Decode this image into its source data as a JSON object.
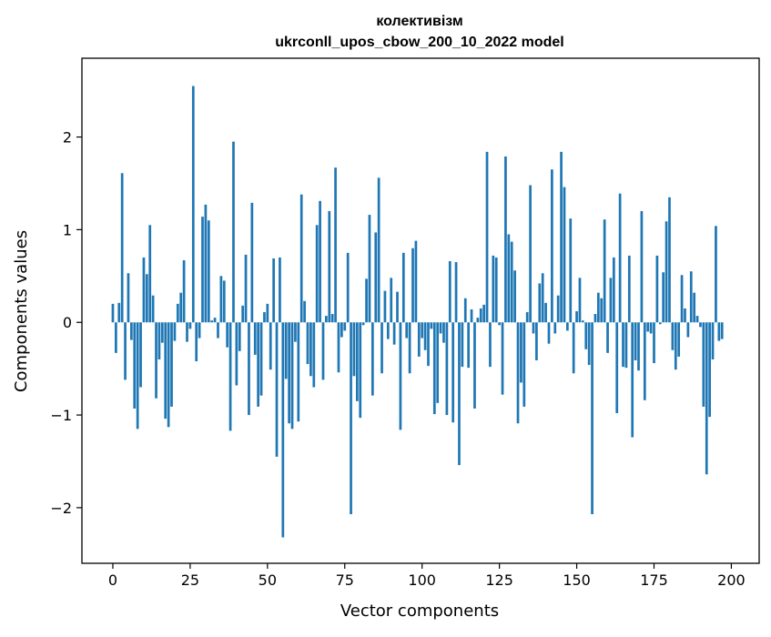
{
  "chart_data": {
    "type": "bar",
    "title": "колективізм",
    "subtitle": "ukrconll_upos_cbow_200_10_2022 model",
    "xlabel": "Vector components",
    "ylabel": "Components values",
    "xlim": [
      -10,
      209
    ],
    "ylim": [
      -2.6,
      2.85
    ],
    "xticks": [
      0,
      25,
      50,
      75,
      100,
      125,
      150,
      175,
      200
    ],
    "yticks": [
      -2,
      -1,
      0,
      1,
      2
    ],
    "ytick_labels": [
      "−2",
      "−1",
      "0",
      "1",
      "2"
    ],
    "grid": false,
    "legend": "none",
    "bar_color": "#1f77b4",
    "series": [
      {
        "values": [
          0.2,
          -0.33,
          0.21,
          1.61,
          -0.62,
          0.53,
          -0.19,
          -0.93,
          -1.15,
          -0.7,
          0.7,
          0.52,
          1.05,
          0.29,
          -0.82,
          -0.4,
          -0.22,
          -1.04,
          -1.13,
          -0.91,
          -0.2,
          0.2,
          0.32,
          0.67,
          -0.21,
          -0.07,
          2.55,
          -0.42,
          -0.17,
          1.14,
          1.27,
          1.1,
          0.02,
          0.05,
          -0.17,
          0.5,
          0.45,
          -0.27,
          -1.17,
          1.95,
          -0.68,
          -0.31,
          0.18,
          0.73,
          -1.0,
          1.29,
          -0.35,
          -0.91,
          -0.79,
          0.11,
          0.2,
          -0.51,
          0.69,
          -1.45,
          0.7,
          -2.32,
          -0.61,
          -1.09,
          -1.15,
          -0.21,
          -1.07,
          1.38,
          0.23,
          -0.45,
          -0.58,
          -0.7,
          1.05,
          1.31,
          -0.62,
          0.07,
          1.2,
          0.09,
          1.67,
          -0.54,
          -0.16,
          -0.09,
          0.75,
          -2.07,
          -0.58,
          -0.85,
          -1.03,
          -0.03,
          0.47,
          1.16,
          -0.79,
          0.97,
          1.56,
          -0.55,
          0.34,
          -0.18,
          0.48,
          -0.24,
          0.33,
          -1.16,
          0.75,
          -0.17,
          -0.55,
          0.8,
          0.88,
          -0.37,
          -0.17,
          -0.3,
          -0.47,
          -0.07,
          -0.99,
          -0.87,
          -0.12,
          -0.22,
          -1.0,
          0.66,
          -1.08,
          0.65,
          -1.54,
          -0.48,
          0.26,
          -0.49,
          0.14,
          -0.93,
          0.05,
          0.15,
          0.19,
          1.84,
          -0.48,
          0.72,
          0.7,
          -0.03,
          -0.78,
          1.79,
          0.95,
          0.87,
          0.56,
          -1.09,
          -0.65,
          -0.91,
          0.11,
          1.48,
          -0.12,
          -0.41,
          0.42,
          0.53,
          0.21,
          -0.23,
          1.65,
          -0.12,
          0.29,
          1.84,
          1.46,
          -0.09,
          1.12,
          -0.55,
          0.12,
          0.48,
          0.02,
          -0.29,
          -0.46,
          -2.07,
          0.09,
          0.32,
          0.26,
          1.11,
          -0.33,
          0.48,
          0.7,
          -0.98,
          1.39,
          -0.48,
          -0.49,
          0.72,
          -1.24,
          -0.41,
          -0.52,
          1.2,
          -0.84,
          -0.1,
          -0.12,
          -0.44,
          0.72,
          -0.02,
          0.54,
          1.09,
          1.35,
          -0.3,
          -0.51,
          -0.37,
          0.51,
          0.15,
          -0.16,
          0.55,
          0.32,
          0.07,
          -0.05,
          -0.91,
          -1.64,
          -1.02,
          -0.4,
          1.04,
          -0.2,
          -0.18
        ]
      }
    ]
  }
}
